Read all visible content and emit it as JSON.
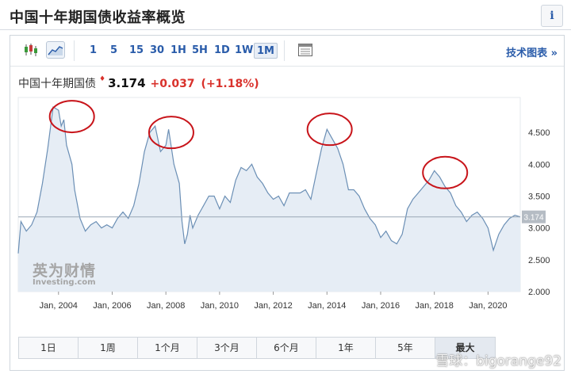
{
  "header": {
    "title": "中国十年期国债收益率概览",
    "info_label": "i"
  },
  "toolbar": {
    "chart_type_icons": [
      "candlestick-icon",
      "area-chart-icon"
    ],
    "timeframes": [
      "1",
      "5",
      "15",
      "30",
      "1H",
      "5H",
      "1D",
      "1W",
      "1M"
    ],
    "selected_timeframe": "1M",
    "tech_chart_label": "技术图表 »"
  },
  "quote": {
    "name": "中国十年期国债",
    "arrow": "♦",
    "price": "3.174",
    "change": "+0.037",
    "change_pct": "(+1.18%)"
  },
  "ranges": [
    "1日",
    "1周",
    "1个月",
    "3个月",
    "6个月",
    "1年",
    "5年",
    "最大"
  ],
  "selected_range": "最大",
  "watermark": {
    "cn": "英为财情",
    "en": "Investing.com",
    "credit": "雪球：bigorange92"
  },
  "colors": {
    "accent": "#2a5caa",
    "up": "#d9312b",
    "line": "#6b8fb5",
    "fill": "#e6edf5",
    "highlight_circle": "#c8141a",
    "last_price_tag": "#b5bcc4"
  },
  "chart_data": {
    "type": "area",
    "x": [
      2002.5,
      2002.6,
      2002.8,
      2003.0,
      2003.2,
      2003.4,
      2003.6,
      2003.8,
      2004.0,
      2004.1,
      2004.2,
      2004.3,
      2004.5,
      2004.6,
      2004.8,
      2005.0,
      2005.2,
      2005.4,
      2005.6,
      2005.8,
      2006.0,
      2006.2,
      2006.4,
      2006.6,
      2006.8,
      2007.0,
      2007.2,
      2007.4,
      2007.6,
      2007.8,
      2008.0,
      2008.1,
      2008.3,
      2008.5,
      2008.6,
      2008.7,
      2008.8,
      2008.9,
      2009.0,
      2009.2,
      2009.4,
      2009.6,
      2009.8,
      2010.0,
      2010.2,
      2010.4,
      2010.6,
      2010.8,
      2011.0,
      2011.2,
      2011.4,
      2011.6,
      2011.8,
      2012.0,
      2012.2,
      2012.4,
      2012.6,
      2012.8,
      2013.0,
      2013.2,
      2013.4,
      2013.6,
      2013.8,
      2014.0,
      2014.2,
      2014.4,
      2014.6,
      2014.8,
      2015.0,
      2015.2,
      2015.4,
      2015.6,
      2015.8,
      2016.0,
      2016.2,
      2016.4,
      2016.6,
      2016.8,
      2017.0,
      2017.2,
      2017.4,
      2017.6,
      2017.8,
      2018.0,
      2018.2,
      2018.4,
      2018.6,
      2018.8,
      2019.0,
      2019.2,
      2019.4,
      2019.6,
      2019.8,
      2020.0,
      2020.2,
      2020.4,
      2020.6,
      2020.8,
      2021.0,
      2021.2
    ],
    "y": [
      2.6,
      3.1,
      2.95,
      3.05,
      3.25,
      3.7,
      4.25,
      4.9,
      4.85,
      4.6,
      4.7,
      4.3,
      4.0,
      3.6,
      3.15,
      2.95,
      3.05,
      3.1,
      3.0,
      3.05,
      3.0,
      3.15,
      3.25,
      3.15,
      3.35,
      3.7,
      4.2,
      4.5,
      4.6,
      4.2,
      4.3,
      4.55,
      4.0,
      3.7,
      3.1,
      2.75,
      2.9,
      3.2,
      3.0,
      3.2,
      3.35,
      3.5,
      3.5,
      3.3,
      3.5,
      3.4,
      3.75,
      3.95,
      3.9,
      4.0,
      3.8,
      3.7,
      3.55,
      3.45,
      3.5,
      3.35,
      3.55,
      3.55,
      3.55,
      3.6,
      3.45,
      3.85,
      4.25,
      4.55,
      4.4,
      4.25,
      4.0,
      3.6,
      3.6,
      3.5,
      3.3,
      3.15,
      3.05,
      2.85,
      2.95,
      2.8,
      2.75,
      2.9,
      3.3,
      3.45,
      3.55,
      3.65,
      3.75,
      3.9,
      3.8,
      3.65,
      3.55,
      3.35,
      3.25,
      3.1,
      3.2,
      3.25,
      3.15,
      3.0,
      2.65,
      2.9,
      3.05,
      3.15,
      3.2,
      3.174
    ],
    "xlabel": "",
    "ylabel": "",
    "x_ticks": [
      "Jan, 2004",
      "Jan, 2006",
      "Jan, 2008",
      "Jan, 2010",
      "Jan, 2012",
      "Jan, 2014",
      "Jan, 2016",
      "Jan, 2018",
      "Jan, 2020"
    ],
    "x_tick_values": [
      2004,
      2006,
      2008,
      2010,
      2012,
      2014,
      2016,
      2018,
      2020
    ],
    "y_ticks": [
      "2.000",
      "2.500",
      "3.000",
      "3.500",
      "4.000",
      "4.500"
    ],
    "y_tick_values": [
      2.0,
      2.5,
      3.0,
      3.5,
      4.0,
      4.5
    ],
    "ylim": [
      2.0,
      5.05
    ],
    "xlim": [
      2002.5,
      2021.2
    ],
    "last_value": 3.174,
    "last_value_label": "3.174",
    "highlights": [
      {
        "x": 2004.5,
        "y": 4.75
      },
      {
        "x": 2008.2,
        "y": 4.5
      },
      {
        "x": 2014.1,
        "y": 4.55
      },
      {
        "x": 2018.4,
        "y": 3.87
      }
    ],
    "grid": false
  }
}
